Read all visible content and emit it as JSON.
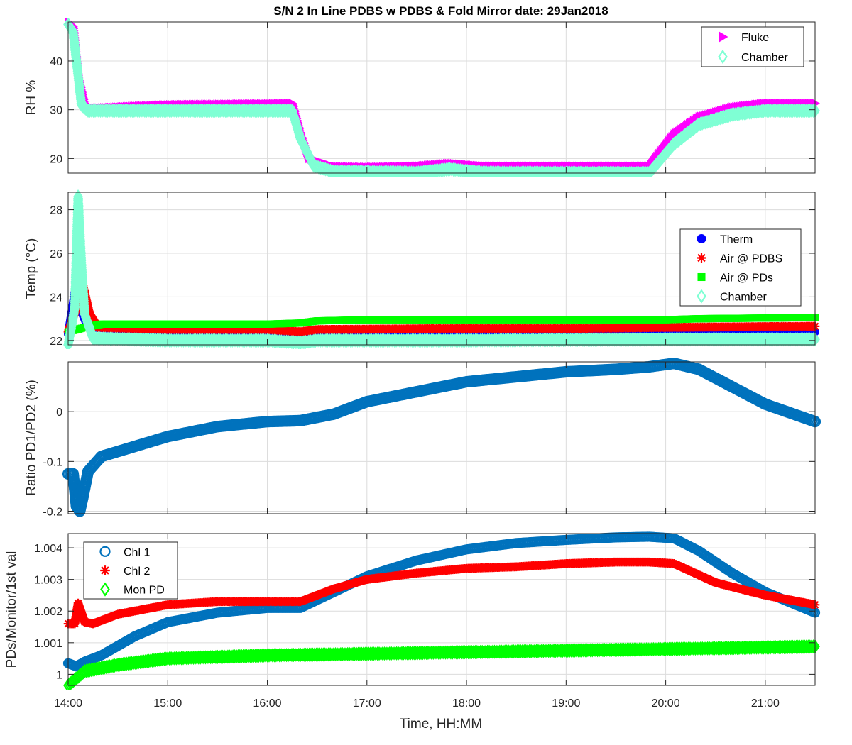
{
  "title": "S/N 2 In Line PDBS w PDBS & Fold Mirror date: 29Jan2018",
  "xlabel": "Time, HH:MM",
  "x_ticks": [
    "14:00",
    "15:00",
    "16:00",
    "17:00",
    "18:00",
    "19:00",
    "20:00",
    "21:00"
  ],
  "chart_data": [
    {
      "type": "scatter",
      "ylabel": "RH %",
      "xlim": [
        "14:00",
        "21:30"
      ],
      "ylim": [
        17,
        48
      ],
      "yticks": [
        20,
        30,
        40
      ],
      "grid": true,
      "legend_position": "top-right",
      "series": [
        {
          "name": "Fluke",
          "marker": "triangle-right",
          "color": "#ff00ff",
          "points": [
            [
              "14:00",
              48
            ],
            [
              "14:03",
              47
            ],
            [
              "14:06",
              37
            ],
            [
              "14:10",
              31
            ],
            [
              "14:15",
              30.3
            ],
            [
              "15:00",
              31
            ],
            [
              "16:00",
              31.2
            ],
            [
              "16:15",
              31.3
            ],
            [
              "16:20",
              25
            ],
            [
              "16:25",
              20
            ],
            [
              "16:40",
              18.3
            ],
            [
              "17:00",
              18.2
            ],
            [
              "17:30",
              18.4
            ],
            [
              "17:50",
              19
            ],
            [
              "18:10",
              18.4
            ],
            [
              "19:00",
              18.4
            ],
            [
              "19:50",
              18.4
            ],
            [
              "20:05",
              25
            ],
            [
              "20:20",
              28.5
            ],
            [
              "20:40",
              30.5
            ],
            [
              "21:00",
              31.3
            ],
            [
              "21:30",
              31.3
            ]
          ]
        },
        {
          "name": "Chamber",
          "marker": "diamond",
          "color": "#7fffd4",
          "points": [
            [
              "14:00",
              47.5
            ],
            [
              "14:03",
              46
            ],
            [
              "14:05",
              40
            ],
            [
              "14:08",
              31
            ],
            [
              "14:12",
              29.8
            ],
            [
              "15:00",
              29.8
            ],
            [
              "16:00",
              29.8
            ],
            [
              "16:15",
              29.8
            ],
            [
              "16:20",
              24
            ],
            [
              "16:28",
              18.5
            ],
            [
              "16:40",
              17.3
            ],
            [
              "17:30",
              17.1
            ],
            [
              "17:50",
              17.8
            ],
            [
              "18:10",
              17.1
            ],
            [
              "19:50",
              17
            ],
            [
              "20:05",
              23
            ],
            [
              "20:20",
              27
            ],
            [
              "20:40",
              29
            ],
            [
              "21:00",
              29.8
            ],
            [
              "21:30",
              29.8
            ]
          ]
        }
      ]
    },
    {
      "type": "scatter",
      "ylabel": "Temp (°C)",
      "xlim": [
        "14:00",
        "21:30"
      ],
      "ylim": [
        21.8,
        28.8
      ],
      "yticks": [
        22,
        24,
        26,
        28
      ],
      "grid": true,
      "legend_position": "right",
      "series": [
        {
          "name": "Therm",
          "marker": "circle-filled",
          "color": "#0000ff",
          "points": [
            [
              "14:00",
              22.3
            ],
            [
              "14:04",
              24.2
            ],
            [
              "14:07",
              23.5
            ],
            [
              "14:12",
              22.6
            ],
            [
              "15:00",
              22.45
            ],
            [
              "16:00",
              22.4
            ],
            [
              "16:20",
              22.35
            ],
            [
              "17:00",
              22.4
            ],
            [
              "18:00",
              22.4
            ],
            [
              "19:00",
              22.4
            ],
            [
              "20:00",
              22.4
            ],
            [
              "21:30",
              22.4
            ]
          ]
        },
        {
          "name": "Air @ PDBS",
          "marker": "asterisk",
          "color": "#ff0000",
          "points": [
            [
              "14:00",
              22.4
            ],
            [
              "14:05",
              23.5
            ],
            [
              "14:09",
              24.5
            ],
            [
              "14:13",
              23.2
            ],
            [
              "14:18",
              22.6
            ],
            [
              "15:00",
              22.5
            ],
            [
              "16:00",
              22.5
            ],
            [
              "16:20",
              22.4
            ],
            [
              "16:30",
              22.5
            ],
            [
              "18:00",
              22.55
            ],
            [
              "19:00",
              22.55
            ],
            [
              "20:00",
              22.6
            ],
            [
              "21:30",
              22.65
            ]
          ]
        },
        {
          "name": "Air @ PDs",
          "marker": "square",
          "color": "#00ff00",
          "points": [
            [
              "14:00",
              22.4
            ],
            [
              "14:10",
              22.6
            ],
            [
              "14:20",
              22.75
            ],
            [
              "15:00",
              22.75
            ],
            [
              "16:00",
              22.75
            ],
            [
              "16:20",
              22.8
            ],
            [
              "16:30",
              22.9
            ],
            [
              "17:00",
              22.95
            ],
            [
              "19:00",
              22.95
            ],
            [
              "20:00",
              22.95
            ],
            [
              "20:20",
              23.0
            ],
            [
              "21:30",
              23.05
            ]
          ]
        },
        {
          "name": "Chamber",
          "marker": "diamond",
          "color": "#7fffd4",
          "points": [
            [
              "14:00",
              21.8
            ],
            [
              "14:04",
              23.5
            ],
            [
              "14:06",
              28.6
            ],
            [
              "14:08",
              25.5
            ],
            [
              "14:10",
              23.2
            ],
            [
              "14:15",
              22.1
            ],
            [
              "15:00",
              22.0
            ],
            [
              "16:00",
              22.0
            ],
            [
              "16:20",
              21.9
            ],
            [
              "16:30",
              22.0
            ],
            [
              "18:00",
              22.0
            ],
            [
              "20:00",
              22.05
            ],
            [
              "21:30",
              22.05
            ]
          ]
        }
      ]
    },
    {
      "type": "scatter",
      "ylabel": "Ratio PD1/PD2 (%)",
      "xlim": [
        "14:00",
        "21:30"
      ],
      "ylim": [
        -0.205,
        0.1
      ],
      "yticks": [
        -0.2,
        -0.1,
        0
      ],
      "grid": true,
      "series": [
        {
          "name": "",
          "marker": "circle",
          "color": "#0072bd",
          "points": [
            [
              "14:00",
              -0.125
            ],
            [
              "14:03",
              -0.125
            ],
            [
              "14:05",
              -0.19
            ],
            [
              "14:07",
              -0.2
            ],
            [
              "14:09",
              -0.17
            ],
            [
              "14:12",
              -0.12
            ],
            [
              "14:20",
              -0.09
            ],
            [
              "14:40",
              -0.07
            ],
            [
              "15:00",
              -0.05
            ],
            [
              "15:30",
              -0.03
            ],
            [
              "16:00",
              -0.02
            ],
            [
              "16:20",
              -0.018
            ],
            [
              "16:40",
              -0.005
            ],
            [
              "17:00",
              0.02
            ],
            [
              "17:30",
              0.04
            ],
            [
              "18:00",
              0.06
            ],
            [
              "18:30",
              0.07
            ],
            [
              "19:00",
              0.08
            ],
            [
              "19:30",
              0.085
            ],
            [
              "19:50",
              0.09
            ],
            [
              "20:05",
              0.097
            ],
            [
              "20:20",
              0.085
            ],
            [
              "20:40",
              0.05
            ],
            [
              "21:00",
              0.015
            ],
            [
              "21:30",
              -0.02
            ]
          ]
        }
      ]
    },
    {
      "type": "scatter",
      "ylabel": "PDs/Monitor/1st val",
      "xlim": [
        "14:00",
        "21:30"
      ],
      "ylim": [
        0.99965,
        1.00445
      ],
      "yticks": [
        "1",
        "1.001",
        "1.002",
        "1.003",
        "1.004"
      ],
      "grid": true,
      "legend_position": "top-left",
      "series": [
        {
          "name": "Chl 1",
          "marker": "circle",
          "color": "#0072bd",
          "points": [
            [
              "14:00",
              1.00035
            ],
            [
              "14:05",
              1.00025
            ],
            [
              "14:10",
              1.0004
            ],
            [
              "14:20",
              1.0006
            ],
            [
              "14:40",
              1.0012
            ],
            [
              "15:00",
              1.00165
            ],
            [
              "15:30",
              1.00195
            ],
            [
              "16:00",
              1.0021
            ],
            [
              "16:20",
              1.0021
            ],
            [
              "16:40",
              1.0026
            ],
            [
              "17:00",
              1.0031
            ],
            [
              "17:30",
              1.0036
            ],
            [
              "18:00",
              1.00395
            ],
            [
              "18:30",
              1.00415
            ],
            [
              "19:00",
              1.00425
            ],
            [
              "19:30",
              1.00433
            ],
            [
              "19:50",
              1.00435
            ],
            [
              "20:05",
              1.0043
            ],
            [
              "20:20",
              1.0039
            ],
            [
              "20:40",
              1.0032
            ],
            [
              "21:00",
              1.0026
            ],
            [
              "21:30",
              1.00195
            ]
          ]
        },
        {
          "name": "Chl 2",
          "marker": "asterisk",
          "color": "#ff0000",
          "points": [
            [
              "14:00",
              1.0016
            ],
            [
              "14:04",
              1.0016
            ],
            [
              "14:06",
              1.00225
            ],
            [
              "14:10",
              1.00165
            ],
            [
              "14:15",
              1.0016
            ],
            [
              "14:30",
              1.0019
            ],
            [
              "15:00",
              1.0022
            ],
            [
              "15:30",
              1.0023
            ],
            [
              "16:00",
              1.0023
            ],
            [
              "16:20",
              1.0023
            ],
            [
              "16:40",
              1.0027
            ],
            [
              "17:00",
              1.003
            ],
            [
              "17:30",
              1.0032
            ],
            [
              "18:00",
              1.00335
            ],
            [
              "18:30",
              1.0034
            ],
            [
              "19:00",
              1.0035
            ],
            [
              "19:30",
              1.00355
            ],
            [
              "19:50",
              1.00355
            ],
            [
              "20:05",
              1.0035
            ],
            [
              "20:30",
              1.0029
            ],
            [
              "21:00",
              1.0025
            ],
            [
              "21:30",
              1.0022
            ]
          ]
        },
        {
          "name": "Mon PD",
          "marker": "diamond",
          "color": "#00ff00",
          "points": [
            [
              "14:00",
              0.99965
            ],
            [
              "14:10",
              1.0001
            ],
            [
              "14:30",
              1.0003
            ],
            [
              "15:00",
              1.0005
            ],
            [
              "15:30",
              1.00055
            ],
            [
              "16:00",
              1.0006
            ],
            [
              "17:00",
              1.00065
            ],
            [
              "18:00",
              1.0007
            ],
            [
              "19:00",
              1.00075
            ],
            [
              "20:00",
              1.0008
            ],
            [
              "21:00",
              1.00085
            ],
            [
              "21:30",
              1.00088
            ]
          ]
        }
      ]
    }
  ]
}
